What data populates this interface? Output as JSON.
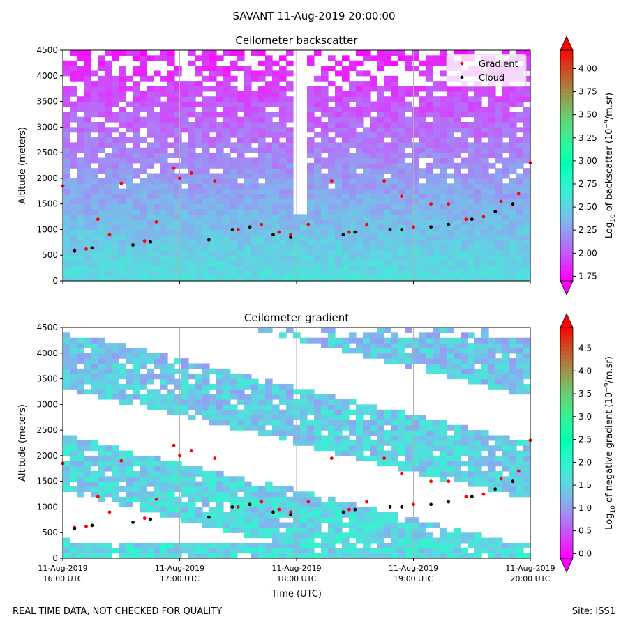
{
  "figure": {
    "title": "SAVANT 11-Aug-2019 20:00:00",
    "footer_left": "REAL TIME DATA, NOT CHECKED FOR QUALITY",
    "footer_right": "Site: ISS1"
  },
  "chart_data": [
    {
      "type": "heatmap",
      "title": "Ceilometer backscatter",
      "xlabel": "",
      "ylabel": "Altitude (meters)",
      "x_ticks": [
        {
          "line1": "11-Aug-2019",
          "line2": "16:00 UTC"
        },
        {
          "line1": "11-Aug-2019",
          "line2": "17:00 UTC"
        },
        {
          "line1": "11-Aug-2019",
          "line2": "18:00 UTC"
        },
        {
          "line1": "11-Aug-2019",
          "line2": "19:00 UTC"
        },
        {
          "line1": "11-Aug-2019",
          "line2": "20:00 UTC"
        }
      ],
      "x_tick_labels_visible": false,
      "xlim_hours": [
        16,
        20
      ],
      "ylim": [
        0,
        4500
      ],
      "y_ticks": [
        "0",
        "500",
        "1000",
        "1500",
        "2000",
        "2500",
        "3000",
        "3500",
        "4000",
        "4500"
      ],
      "grid": "vertical lines at hour ticks",
      "legend": {
        "placement": "top-right",
        "entries": [
          {
            "label": "Gradient",
            "color": "#ff0000"
          },
          {
            "label": "Cloud",
            "color": "#000000"
          }
        ]
      },
      "colorbar": {
        "label_main": "Log",
        "label_sub": "10",
        "label_rest": " of backscatter (10",
        "label_sup": "−9",
        "label_end": "/m.sr)",
        "ticks": [
          "1.75",
          "2.00",
          "2.25",
          "2.50",
          "2.75",
          "3.00",
          "3.25",
          "3.50",
          "3.75",
          "4.00"
        ],
        "tick_values": [
          1.75,
          2.0,
          2.25,
          2.5,
          2.75,
          3.0,
          3.25,
          3.5,
          3.75,
          4.0
        ],
        "vmin": 1.7,
        "vmax": 4.2,
        "extend": "both",
        "colormap": "rainbow"
      },
      "background_field": "ceilometer backscatter (approximate bands)",
      "series": [
        {
          "name": "Gradient",
          "color": "#ff0000",
          "x_hours": [
            16.0,
            16.1,
            16.2,
            16.3,
            16.4,
            16.5,
            16.7,
            16.8,
            16.95,
            17.0,
            17.1,
            17.3,
            17.5,
            17.7,
            17.85,
            17.95,
            18.1,
            18.3,
            18.45,
            18.6,
            18.75,
            18.9,
            19.0,
            19.15,
            19.3,
            19.45,
            19.6,
            19.75,
            19.9,
            20.0
          ],
          "y_m": [
            1850,
            600,
            620,
            1200,
            900,
            1900,
            780,
            1150,
            2200,
            2000,
            2100,
            1950,
            1000,
            1100,
            950,
            900,
            1100,
            1950,
            950,
            1100,
            1950,
            1650,
            1050,
            1500,
            1500,
            1200,
            1250,
            1550,
            1700,
            2300
          ]
        },
        {
          "name": "Cloud",
          "color": "#000000",
          "x_hours": [
            16.1,
            16.25,
            16.6,
            16.75,
            17.25,
            17.45,
            17.6,
            17.8,
            17.95,
            18.4,
            18.5,
            18.8,
            18.9,
            19.15,
            19.3,
            19.5,
            19.7,
            19.85
          ],
          "y_m": [
            580,
            640,
            700,
            760,
            800,
            1000,
            1050,
            900,
            850,
            900,
            950,
            1000,
            1000,
            1050,
            1100,
            1200,
            1350,
            1500
          ]
        }
      ]
    },
    {
      "type": "heatmap",
      "title": "Ceilometer gradient",
      "xlabel": "Time (UTC)",
      "ylabel": "Altitude (meters)",
      "x_ticks": [
        {
          "line1": "11-Aug-2019",
          "line2": "16:00 UTC"
        },
        {
          "line1": "11-Aug-2019",
          "line2": "17:00 UTC"
        },
        {
          "line1": "11-Aug-2019",
          "line2": "18:00 UTC"
        },
        {
          "line1": "11-Aug-2019",
          "line2": "19:00 UTC"
        },
        {
          "line1": "11-Aug-2019",
          "line2": "20:00 UTC"
        }
      ],
      "x_tick_labels_visible": true,
      "xlim_hours": [
        16,
        20
      ],
      "ylim": [
        0,
        4500
      ],
      "y_ticks": [
        "0",
        "500",
        "1000",
        "1500",
        "2000",
        "2500",
        "3000",
        "3500",
        "4000",
        "4500"
      ],
      "grid": "vertical lines at hour ticks",
      "colorbar": {
        "label_main": "Log",
        "label_sub": "10",
        "label_rest": " of negative gradient (10",
        "label_sup": "−9",
        "label_end": "/m.sr)",
        "ticks": [
          "0.0",
          "0.5",
          "1.0",
          "1.5",
          "2.0",
          "2.5",
          "3.0",
          "3.5",
          "4.0",
          "4.5"
        ],
        "tick_values": [
          0.0,
          0.5,
          1.0,
          1.5,
          2.0,
          2.5,
          3.0,
          3.5,
          4.0,
          4.5
        ],
        "vmin": -0.1,
        "vmax": 4.95,
        "extend": "both",
        "colormap": "rainbow"
      },
      "background_field": "ceilometer negative gradient (approximate patchy bands)",
      "series": [
        {
          "name": "Gradient",
          "color": "#ff0000",
          "x_hours": [
            16.0,
            16.1,
            16.2,
            16.3,
            16.4,
            16.5,
            16.7,
            16.8,
            16.95,
            17.0,
            17.1,
            17.3,
            17.5,
            17.7,
            17.85,
            17.95,
            18.1,
            18.3,
            18.45,
            18.6,
            18.75,
            18.9,
            19.0,
            19.15,
            19.3,
            19.45,
            19.6,
            19.75,
            19.9,
            20.0
          ],
          "y_m": [
            1850,
            600,
            620,
            1200,
            900,
            1900,
            780,
            1150,
            2200,
            2000,
            2100,
            1950,
            1000,
            1100,
            950,
            900,
            1100,
            1950,
            950,
            1100,
            1950,
            1650,
            1050,
            1500,
            1500,
            1200,
            1250,
            1550,
            1700,
            2300
          ]
        },
        {
          "name": "Cloud",
          "color": "#000000",
          "x_hours": [
            16.1,
            16.25,
            16.6,
            16.75,
            17.25,
            17.45,
            17.6,
            17.8,
            17.95,
            18.4,
            18.5,
            18.8,
            18.9,
            19.15,
            19.3,
            19.5,
            19.7,
            19.85
          ],
          "y_m": [
            580,
            640,
            700,
            760,
            800,
            1000,
            1050,
            900,
            850,
            900,
            950,
            1000,
            1000,
            1050,
            1100,
            1200,
            1350,
            1500
          ]
        }
      ]
    }
  ]
}
